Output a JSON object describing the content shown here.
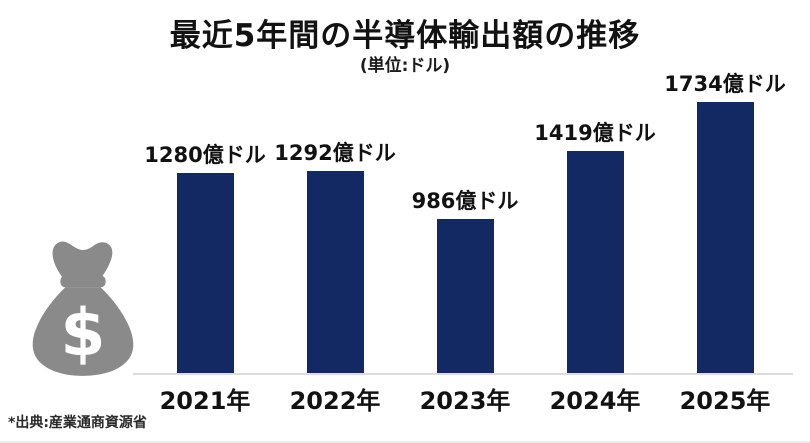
{
  "title": "最近5年間の半導体輸出額の推移",
  "subtitle": "(単位:ドル)",
  "source_note": "*出典:産業通商資源省",
  "icons": {
    "money_bag": "money-bag-dollar-icon"
  },
  "colors": {
    "bar": "#132963",
    "icon_gray": "#8a8a8a",
    "baseline": "#dcdcdc",
    "text": "#121212",
    "background": "#ffffff"
  },
  "chart_data": {
    "type": "bar",
    "title": "最近5年間の半導体輸出額の推移",
    "unit_note": "(単位:ドル)",
    "categories": [
      "2021年",
      "2022年",
      "2023年",
      "2024年",
      "2025年"
    ],
    "values": [
      1280,
      1292,
      986,
      1419,
      1734
    ],
    "value_labels": [
      "1280億ドル",
      "1292億ドル",
      "986億ドル",
      "1419億ドル",
      "1734億ドル"
    ],
    "unit": "億ドル",
    "ylim": [
      0,
      1800
    ],
    "grid": false,
    "legend": false,
    "source": "*出典:産業通商資源省"
  }
}
